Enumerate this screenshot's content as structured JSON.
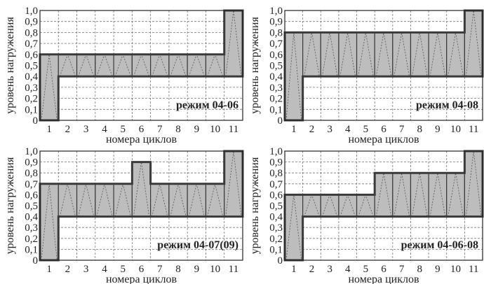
{
  "chart_data": [
    {
      "type": "bar",
      "ylabel": "уровень нагружения",
      "xlabel": "номера циклов",
      "mode_label": "режим 04-06",
      "categories": [
        "1",
        "2",
        "3",
        "4",
        "5",
        "6",
        "7",
        "8",
        "9",
        "10",
        "11"
      ],
      "peak": [
        0.6,
        0.6,
        0.6,
        0.6,
        0.6,
        0.6,
        0.6,
        0.6,
        0.6,
        0.6,
        1.0
      ],
      "base": [
        0,
        0.4,
        0.4,
        0.4,
        0.4,
        0.4,
        0.4,
        0.4,
        0.4,
        0.4,
        0.4
      ],
      "ylim": [
        0,
        1.0
      ],
      "yticks": [
        "0",
        "0,1",
        "0,2",
        "0,3",
        "0,4",
        "0,5",
        "0,6",
        "0,7",
        "0,8",
        "0,9",
        "1,0"
      ],
      "grid": true,
      "colors": {
        "fill": "#bdbdbd",
        "stroke": "#3a3a3a",
        "grid": "#777777"
      }
    },
    {
      "type": "bar",
      "ylabel": "уровень нагружения",
      "xlabel": "номера циклов",
      "mode_label": "режим 04-08",
      "categories": [
        "1",
        "2",
        "3",
        "4",
        "5",
        "6",
        "7",
        "8",
        "9",
        "10",
        "11"
      ],
      "peak": [
        0.8,
        0.8,
        0.8,
        0.8,
        0.8,
        0.8,
        0.8,
        0.8,
        0.8,
        0.8,
        1.0
      ],
      "base": [
        0,
        0.4,
        0.4,
        0.4,
        0.4,
        0.4,
        0.4,
        0.4,
        0.4,
        0.4,
        0.4
      ],
      "ylim": [
        0,
        1.0
      ],
      "yticks": [
        "0",
        "0,1",
        "0,2",
        "0,3",
        "0,4",
        "0,5",
        "0,6",
        "0,7",
        "0,8",
        "0,9",
        "1,0"
      ],
      "grid": true,
      "colors": {
        "fill": "#bdbdbd",
        "stroke": "#3a3a3a",
        "grid": "#777777"
      }
    },
    {
      "type": "bar",
      "ylabel": "уровень нагружения",
      "xlabel": "номера циклов",
      "mode_label": "режим 04-07(09)",
      "categories": [
        "1",
        "2",
        "3",
        "4",
        "5",
        "6",
        "7",
        "8",
        "9",
        "10",
        "11"
      ],
      "peak": [
        0.7,
        0.7,
        0.7,
        0.7,
        0.7,
        0.9,
        0.7,
        0.7,
        0.7,
        0.7,
        1.0
      ],
      "base": [
        0,
        0.4,
        0.4,
        0.4,
        0.4,
        0.4,
        0.4,
        0.4,
        0.4,
        0.4,
        0.4
      ],
      "ylim": [
        0,
        1.0
      ],
      "yticks": [
        "0",
        "0,1",
        "0,2",
        "0,3",
        "0,4",
        "0,5",
        "0,6",
        "0,7",
        "0,8",
        "0,9",
        "1,0"
      ],
      "grid": true,
      "colors": {
        "fill": "#bdbdbd",
        "stroke": "#3a3a3a",
        "grid": "#777777"
      }
    },
    {
      "type": "bar",
      "ylabel": "уровень нагружения",
      "xlabel": "номера циклов",
      "mode_label": "режим 04-06-08",
      "categories": [
        "1",
        "2",
        "3",
        "4",
        "5",
        "6",
        "7",
        "8",
        "9",
        "10",
        "11"
      ],
      "peak": [
        0.6,
        0.6,
        0.6,
        0.6,
        0.6,
        0.8,
        0.8,
        0.8,
        0.8,
        0.8,
        1.0
      ],
      "base": [
        0,
        0.4,
        0.4,
        0.4,
        0.4,
        0.4,
        0.4,
        0.4,
        0.4,
        0.4,
        0.4
      ],
      "ylim": [
        0,
        1.0
      ],
      "yticks": [
        "0",
        "0,1",
        "0,2",
        "0,3",
        "0,4",
        "0,5",
        "0,6",
        "0,7",
        "0,8",
        "0,9",
        "1,0"
      ],
      "grid": true,
      "colors": {
        "fill": "#bdbdbd",
        "stroke": "#3a3a3a",
        "grid": "#777777"
      }
    }
  ]
}
